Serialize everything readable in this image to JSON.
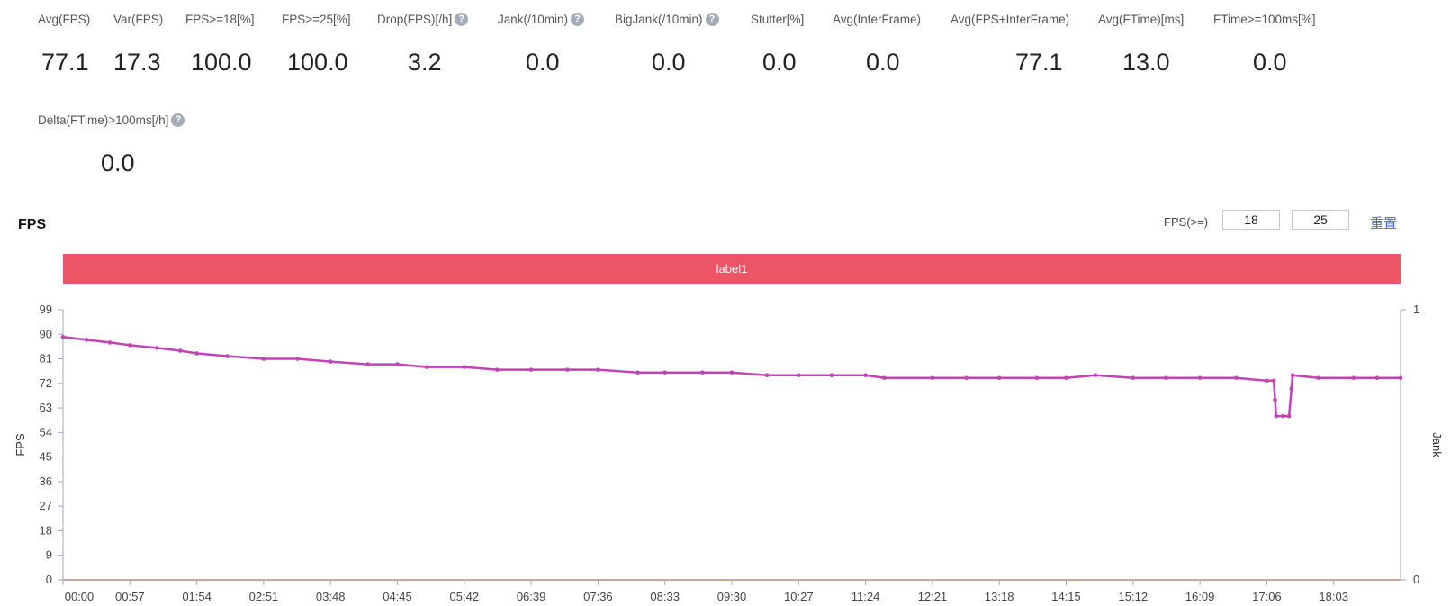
{
  "metrics": [
    {
      "label": "Avg(FPS)",
      "value": "77.1",
      "help": false
    },
    {
      "label": "Var(FPS)",
      "value": "17.3",
      "help": false
    },
    {
      "label": "FPS>=18[%]",
      "value": "100.0",
      "help": false
    },
    {
      "label": "FPS>=25[%]",
      "value": "100.0",
      "help": false
    },
    {
      "label": "Drop(FPS)[/h]",
      "value": "3.2",
      "help": true
    },
    {
      "label": "Jank(/10min)",
      "value": "0.0",
      "help": true
    },
    {
      "label": "BigJank(/10min)",
      "value": "0.0",
      "help": true
    },
    {
      "label": "Stutter[%]",
      "value": "0.0",
      "help": false
    },
    {
      "label": "Avg(InterFrame)",
      "value": "0.0",
      "help": false
    },
    {
      "label": "Avg(FPS+InterFrame)",
      "value": "77.1",
      "help": false
    },
    {
      "label": "Avg(FTime)[ms]",
      "value": "13.0",
      "help": false
    },
    {
      "label": "FTime>=100ms[%]",
      "value": "0.0",
      "help": false
    },
    {
      "label": "Delta(FTime)>100ms[/h]",
      "value": "0.0",
      "help": true
    }
  ],
  "help_glyph": "?",
  "section_title": "FPS",
  "threshold": {
    "label": "FPS(>=)",
    "low": "18",
    "high": "25",
    "reset_label": "重置"
  },
  "band_label": "label1",
  "chart_data": {
    "type": "line",
    "y_label": "FPS",
    "y2_label": "Jank",
    "y_ticks": [
      "0",
      "9",
      "18",
      "27",
      "36",
      "45",
      "54",
      "63",
      "72",
      "81",
      "90",
      "99"
    ],
    "y_range": [
      0,
      99
    ],
    "y2_ticks": [
      "0",
      "1"
    ],
    "y2_range": [
      0,
      1
    ],
    "x_ticks": [
      "00:00",
      "00:57",
      "01:54",
      "02:51",
      "03:48",
      "04:45",
      "05:42",
      "06:39",
      "07:36",
      "08:33",
      "09:30",
      "10:27",
      "11:24",
      "12:21",
      "13:18",
      "14:15",
      "15:12",
      "16:09",
      "17:06",
      "18:03"
    ],
    "x_range_minutes": [
      0,
      1140
    ],
    "series": [
      {
        "name": "FPS",
        "color": "#c342b6",
        "points": [
          [
            0,
            89
          ],
          [
            20,
            88
          ],
          [
            40,
            87
          ],
          [
            57,
            86
          ],
          [
            80,
            85
          ],
          [
            100,
            84
          ],
          [
            114,
            83
          ],
          [
            140,
            82
          ],
          [
            171,
            81
          ],
          [
            200,
            81
          ],
          [
            228,
            80
          ],
          [
            260,
            79
          ],
          [
            285,
            79
          ],
          [
            310,
            78
          ],
          [
            342,
            78
          ],
          [
            370,
            77
          ],
          [
            399,
            77
          ],
          [
            430,
            77
          ],
          [
            456,
            77
          ],
          [
            490,
            76
          ],
          [
            513,
            76
          ],
          [
            545,
            76
          ],
          [
            570,
            76
          ],
          [
            600,
            75
          ],
          [
            627,
            75
          ],
          [
            655,
            75
          ],
          [
            684,
            75
          ],
          [
            700,
            74
          ],
          [
            741,
            74
          ],
          [
            770,
            74
          ],
          [
            798,
            74
          ],
          [
            830,
            74
          ],
          [
            855,
            74
          ],
          [
            880,
            75
          ],
          [
            912,
            74
          ],
          [
            940,
            74
          ],
          [
            969,
            74
          ],
          [
            1000,
            74
          ],
          [
            1026,
            73
          ],
          [
            1032,
            73
          ],
          [
            1033,
            66
          ],
          [
            1034,
            60
          ],
          [
            1040,
            60
          ],
          [
            1045,
            60
          ],
          [
            1047,
            70
          ],
          [
            1048,
            75
          ],
          [
            1070,
            74
          ],
          [
            1100,
            74
          ],
          [
            1120,
            74
          ],
          [
            1140,
            74
          ]
        ]
      },
      {
        "name": "Jank",
        "color": "#c9a89a",
        "points": [
          [
            0,
            0
          ],
          [
            1140,
            0
          ]
        ]
      }
    ]
  }
}
